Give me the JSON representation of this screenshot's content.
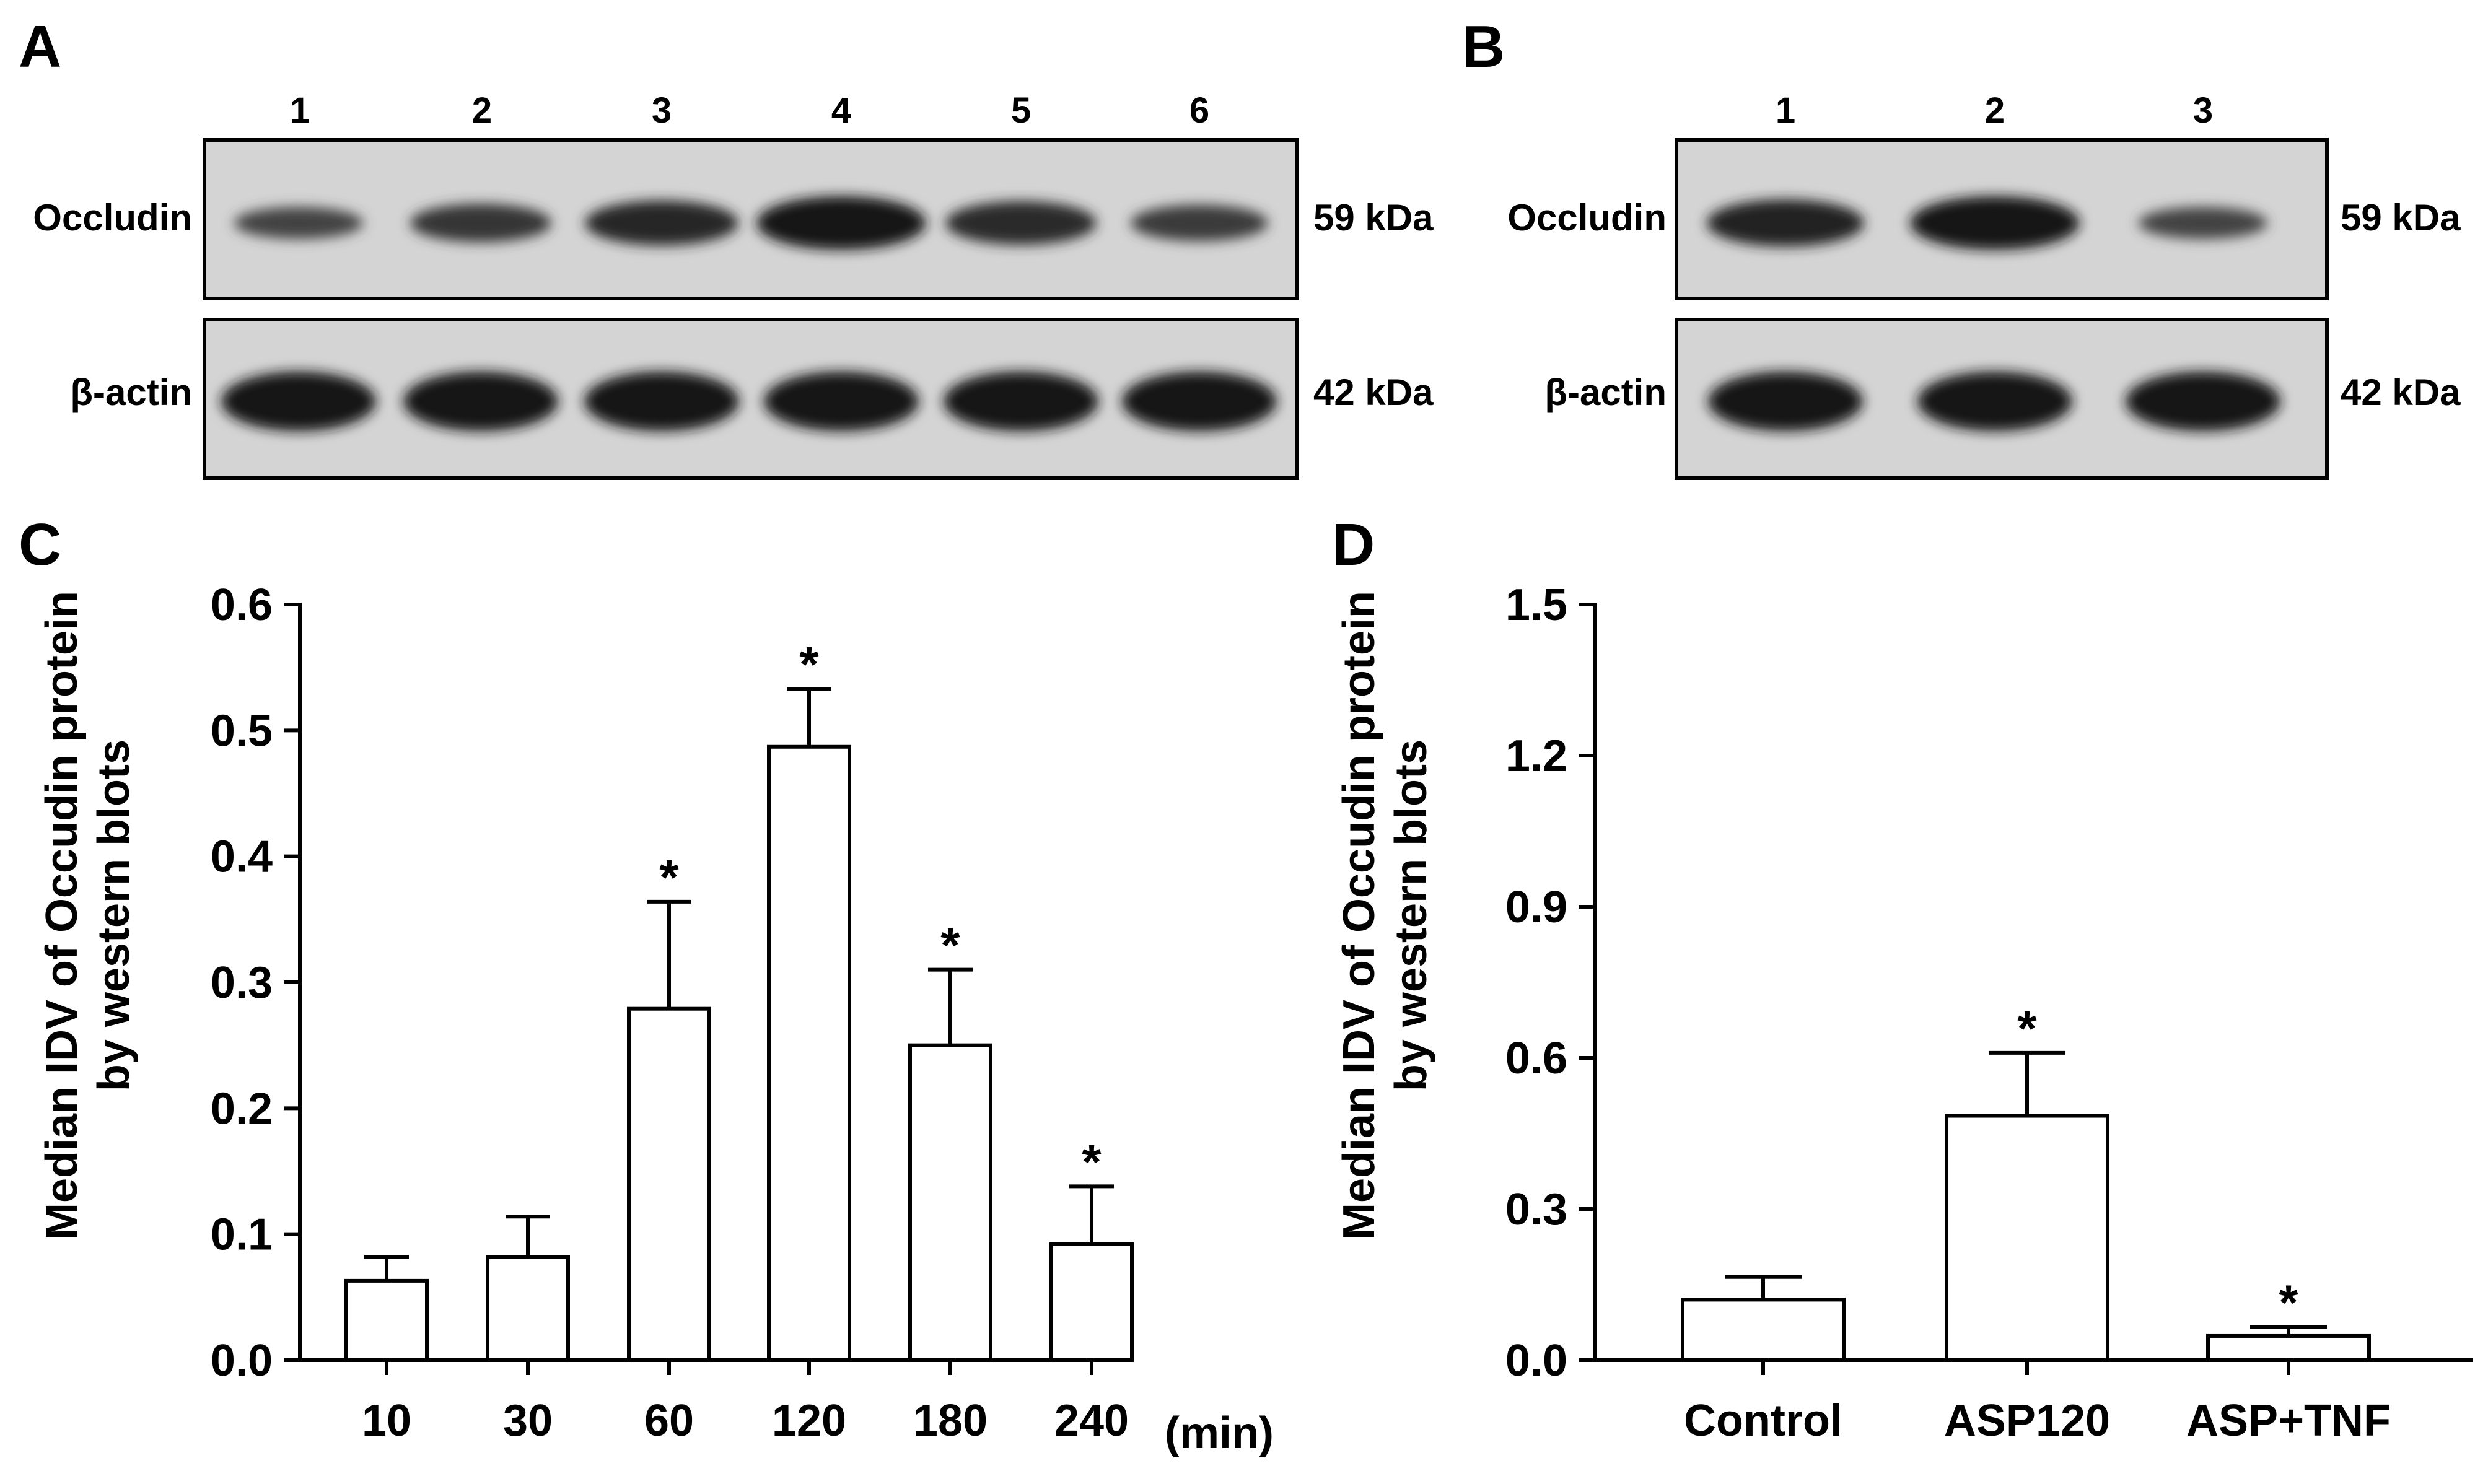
{
  "panels": {
    "A": {
      "letter": "A",
      "lanes": [
        "1",
        "2",
        "3",
        "4",
        "5",
        "6"
      ],
      "rows": [
        {
          "protein": "Occludin",
          "size": "59 kDa",
          "band_intensity": [
            0.45,
            0.6,
            0.75,
            0.95,
            0.72,
            0.55
          ]
        },
        {
          "protein": "β-actin",
          "size": "42 kDa",
          "band_intensity": [
            1,
            1,
            1,
            1,
            1,
            1
          ]
        }
      ]
    },
    "B": {
      "letter": "B",
      "lanes": [
        "1",
        "2",
        "3"
      ],
      "rows": [
        {
          "protein": "Occludin",
          "size": "59 kDa",
          "band_intensity": [
            0.8,
            0.95,
            0.45
          ]
        },
        {
          "protein": "β-actin",
          "size": "42 kDa",
          "band_intensity": [
            1,
            1,
            1
          ]
        }
      ]
    },
    "C": {
      "letter": "C",
      "x_unit": "(min)"
    },
    "D": {
      "letter": "D"
    }
  },
  "chart_data": [
    {
      "type": "bar",
      "panel": "C",
      "categories": [
        "10",
        "30",
        "60",
        "120",
        "180",
        "240"
      ],
      "values": [
        0.063,
        0.082,
        0.279,
        0.487,
        0.25,
        0.092
      ],
      "errors": [
        0.019,
        0.032,
        0.085,
        0.046,
        0.06,
        0.046
      ],
      "significant": [
        false,
        false,
        true,
        true,
        true,
        true
      ],
      "significance_marker": "*",
      "ylabel_lines": [
        "Median IDV of Occudin protein",
        "by western blots"
      ],
      "ylim": [
        0,
        0.6
      ],
      "yticks": [
        "0.0",
        "0.1",
        "0.2",
        "0.3",
        "0.4",
        "0.5",
        "0.6"
      ],
      "xlabel": "(min)",
      "bar_fill": "#ffffff",
      "bar_stroke": "#000000"
    },
    {
      "type": "bar",
      "panel": "D",
      "categories": [
        "Control",
        "ASP120",
        "ASP+TNF"
      ],
      "values": [
        0.12,
        0.485,
        0.048
      ],
      "errors": [
        0.045,
        0.125,
        0.018
      ],
      "significant": [
        false,
        true,
        true
      ],
      "significance_marker": "*",
      "ylabel_lines": [
        "Median IDV of Occudin protein",
        "by western blots"
      ],
      "ylim": [
        0,
        1.5
      ],
      "yticks": [
        "0.0",
        "0.3",
        "0.6",
        "0.9",
        "1.2",
        "1.5"
      ],
      "bar_fill": "#ffffff",
      "bar_stroke": "#000000"
    }
  ]
}
